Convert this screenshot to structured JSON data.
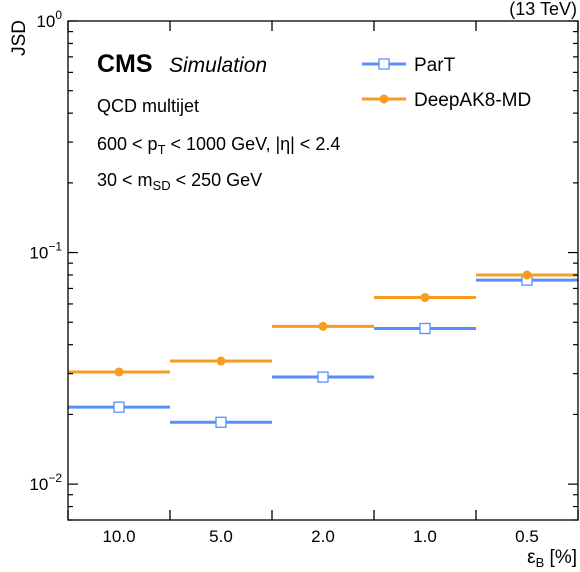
{
  "chart_data": {
    "type": "scatter",
    "experiment": "CMS",
    "experiment_label": "Simulation",
    "energy_label": "(13 TeV)",
    "annotations": [
      {
        "text": "QCD multijet"
      },
      {
        "text_parts": [
          "600 < p",
          "T",
          " < 1000 GeV, |η| < 2.4"
        ]
      },
      {
        "text_parts": [
          "30 < m",
          "SD",
          " < 250 GeV"
        ]
      }
    ],
    "ylabel": "JSD",
    "xlabel_main": "ε",
    "xlabel_sub": "B",
    "xlabel_unit": " [%]",
    "yscale": "log",
    "ylim": [
      0.007,
      1.0
    ],
    "ytick_labels": [
      {
        "base": "10",
        "exp": "0",
        "value": 1.0
      },
      {
        "base": "10",
        "exp": "−1",
        "value": 0.1
      },
      {
        "base": "10",
        "exp": "−2",
        "value": 0.01
      }
    ],
    "categories": [
      "10.0",
      "5.0",
      "2.0",
      "1.0",
      "0.5"
    ],
    "legend_position": "top-right",
    "series": [
      {
        "name": "ParT",
        "color": "#5790fc",
        "marker": "open-square",
        "values": [
          0.0215,
          0.0185,
          0.029,
          0.047,
          0.076
        ]
      },
      {
        "name": "DeepAK8-MD",
        "color": "#f89c20",
        "marker": "filled-circle",
        "values": [
          0.0305,
          0.034,
          0.048,
          0.064,
          0.08
        ]
      }
    ]
  }
}
